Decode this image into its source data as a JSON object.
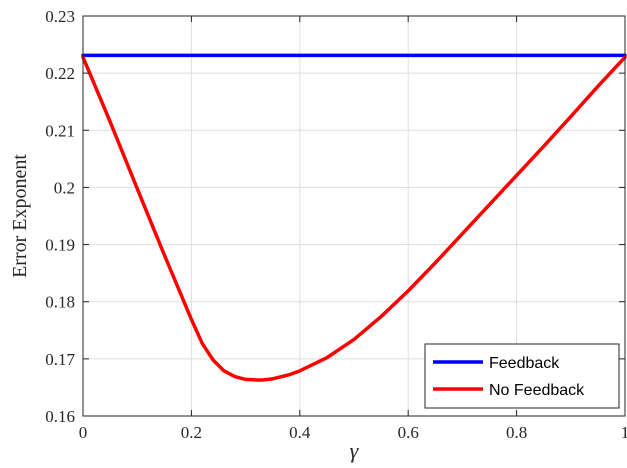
{
  "chart_data": {
    "type": "line",
    "title": "",
    "xlabel": "γ",
    "ylabel": "Error Exponent",
    "xlim": [
      0,
      1
    ],
    "ylim": [
      0.16,
      0.23
    ],
    "xticks": [
      0,
      0.2,
      0.4,
      0.6,
      0.8,
      1
    ],
    "xtick_labels": [
      "0",
      "0.2",
      "0.4",
      "0.6",
      "0.8",
      "1"
    ],
    "yticks": [
      0.16,
      0.17,
      0.18,
      0.19,
      0.2,
      0.21,
      0.22,
      0.23
    ],
    "ytick_labels": [
      "0.16",
      "0.17",
      "0.18",
      "0.19",
      "0.2",
      "0.21",
      "0.22",
      "0.23"
    ],
    "grid": true,
    "legend_position": "bottom-right",
    "series": [
      {
        "name": "Feedback",
        "color": "#0000ff",
        "x": [
          0,
          1
        ],
        "y": [
          0.2231,
          0.2231
        ]
      },
      {
        "name": "No Feedback",
        "color": "#ff0000",
        "x": [
          0,
          0.05,
          0.1,
          0.15,
          0.2,
          0.22,
          0.24,
          0.26,
          0.28,
          0.3,
          0.32,
          0.33,
          0.35,
          0.38,
          0.4,
          0.45,
          0.5,
          0.55,
          0.6,
          0.65,
          0.7,
          0.75,
          0.8,
          0.85,
          0.9,
          0.95,
          1
        ],
        "y": [
          0.2228,
          0.2115,
          0.1998,
          0.1882,
          0.1769,
          0.1727,
          0.1698,
          0.1679,
          0.1669,
          0.1664,
          0.1663,
          0.1663,
          0.1665,
          0.1672,
          0.1679,
          0.1702,
          0.1734,
          0.1774,
          0.1819,
          0.1868,
          0.1919,
          0.197,
          0.2021,
          0.2072,
          0.2124,
          0.2177,
          0.2228
        ]
      }
    ]
  }
}
